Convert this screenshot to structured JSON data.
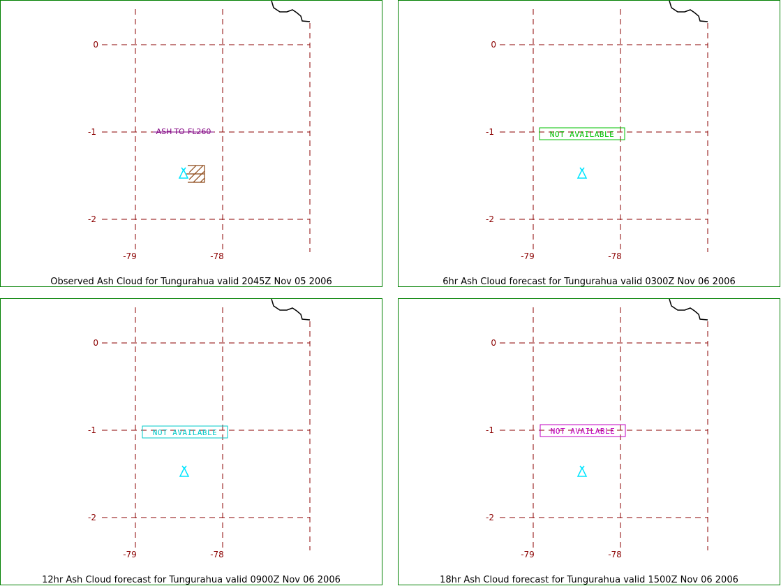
{
  "colors": {
    "frame": "#008000",
    "grid": "#8b0000",
    "coast": "#000000",
    "volcano": "#00ffff",
    "ash_hatch": "#8b4513"
  },
  "panels": [
    {
      "caption": "Observed Ash Cloud for Tungurahua valid 2045Z Nov 05 2006",
      "lat_labels": [
        "0",
        "-1",
        "-2"
      ],
      "lon_labels": [
        "-79",
        "-78"
      ],
      "annotation": "ASH-TO-FL260",
      "annotation_color": "#800080",
      "icons": [
        "volcano-icon",
        "ash-cloud-hatch-icon"
      ]
    },
    {
      "caption": "6hr Ash Cloud forecast for Tungurahua valid 0300Z Nov 06 2006",
      "lat_labels": [
        "0",
        "-1",
        "-2"
      ],
      "lon_labels": [
        "-79",
        "-78"
      ],
      "annotation": "NOT AVAILABLE",
      "annotation_color": "#00c000",
      "icons": [
        "volcano-icon"
      ]
    },
    {
      "caption": "12hr Ash Cloud forecast for Tungurahua valid 0900Z Nov 06 2006",
      "lat_labels": [
        "0",
        "-1",
        "-2"
      ],
      "lon_labels": [
        "-79",
        "-78"
      ],
      "annotation": "NOT AVAILABLE",
      "annotation_color": "#00c8c8",
      "icons": [
        "volcano-icon"
      ]
    },
    {
      "caption": "18hr Ash Cloud forecast for Tungurahua valid 1500Z Nov 06 2006",
      "lat_labels": [
        "0",
        "-1",
        "-2"
      ],
      "lon_labels": [
        "-79",
        "-78"
      ],
      "annotation": "NOT AVAILABLE",
      "annotation_color": "#c000c0",
      "icons": [
        "volcano-icon"
      ]
    }
  ]
}
